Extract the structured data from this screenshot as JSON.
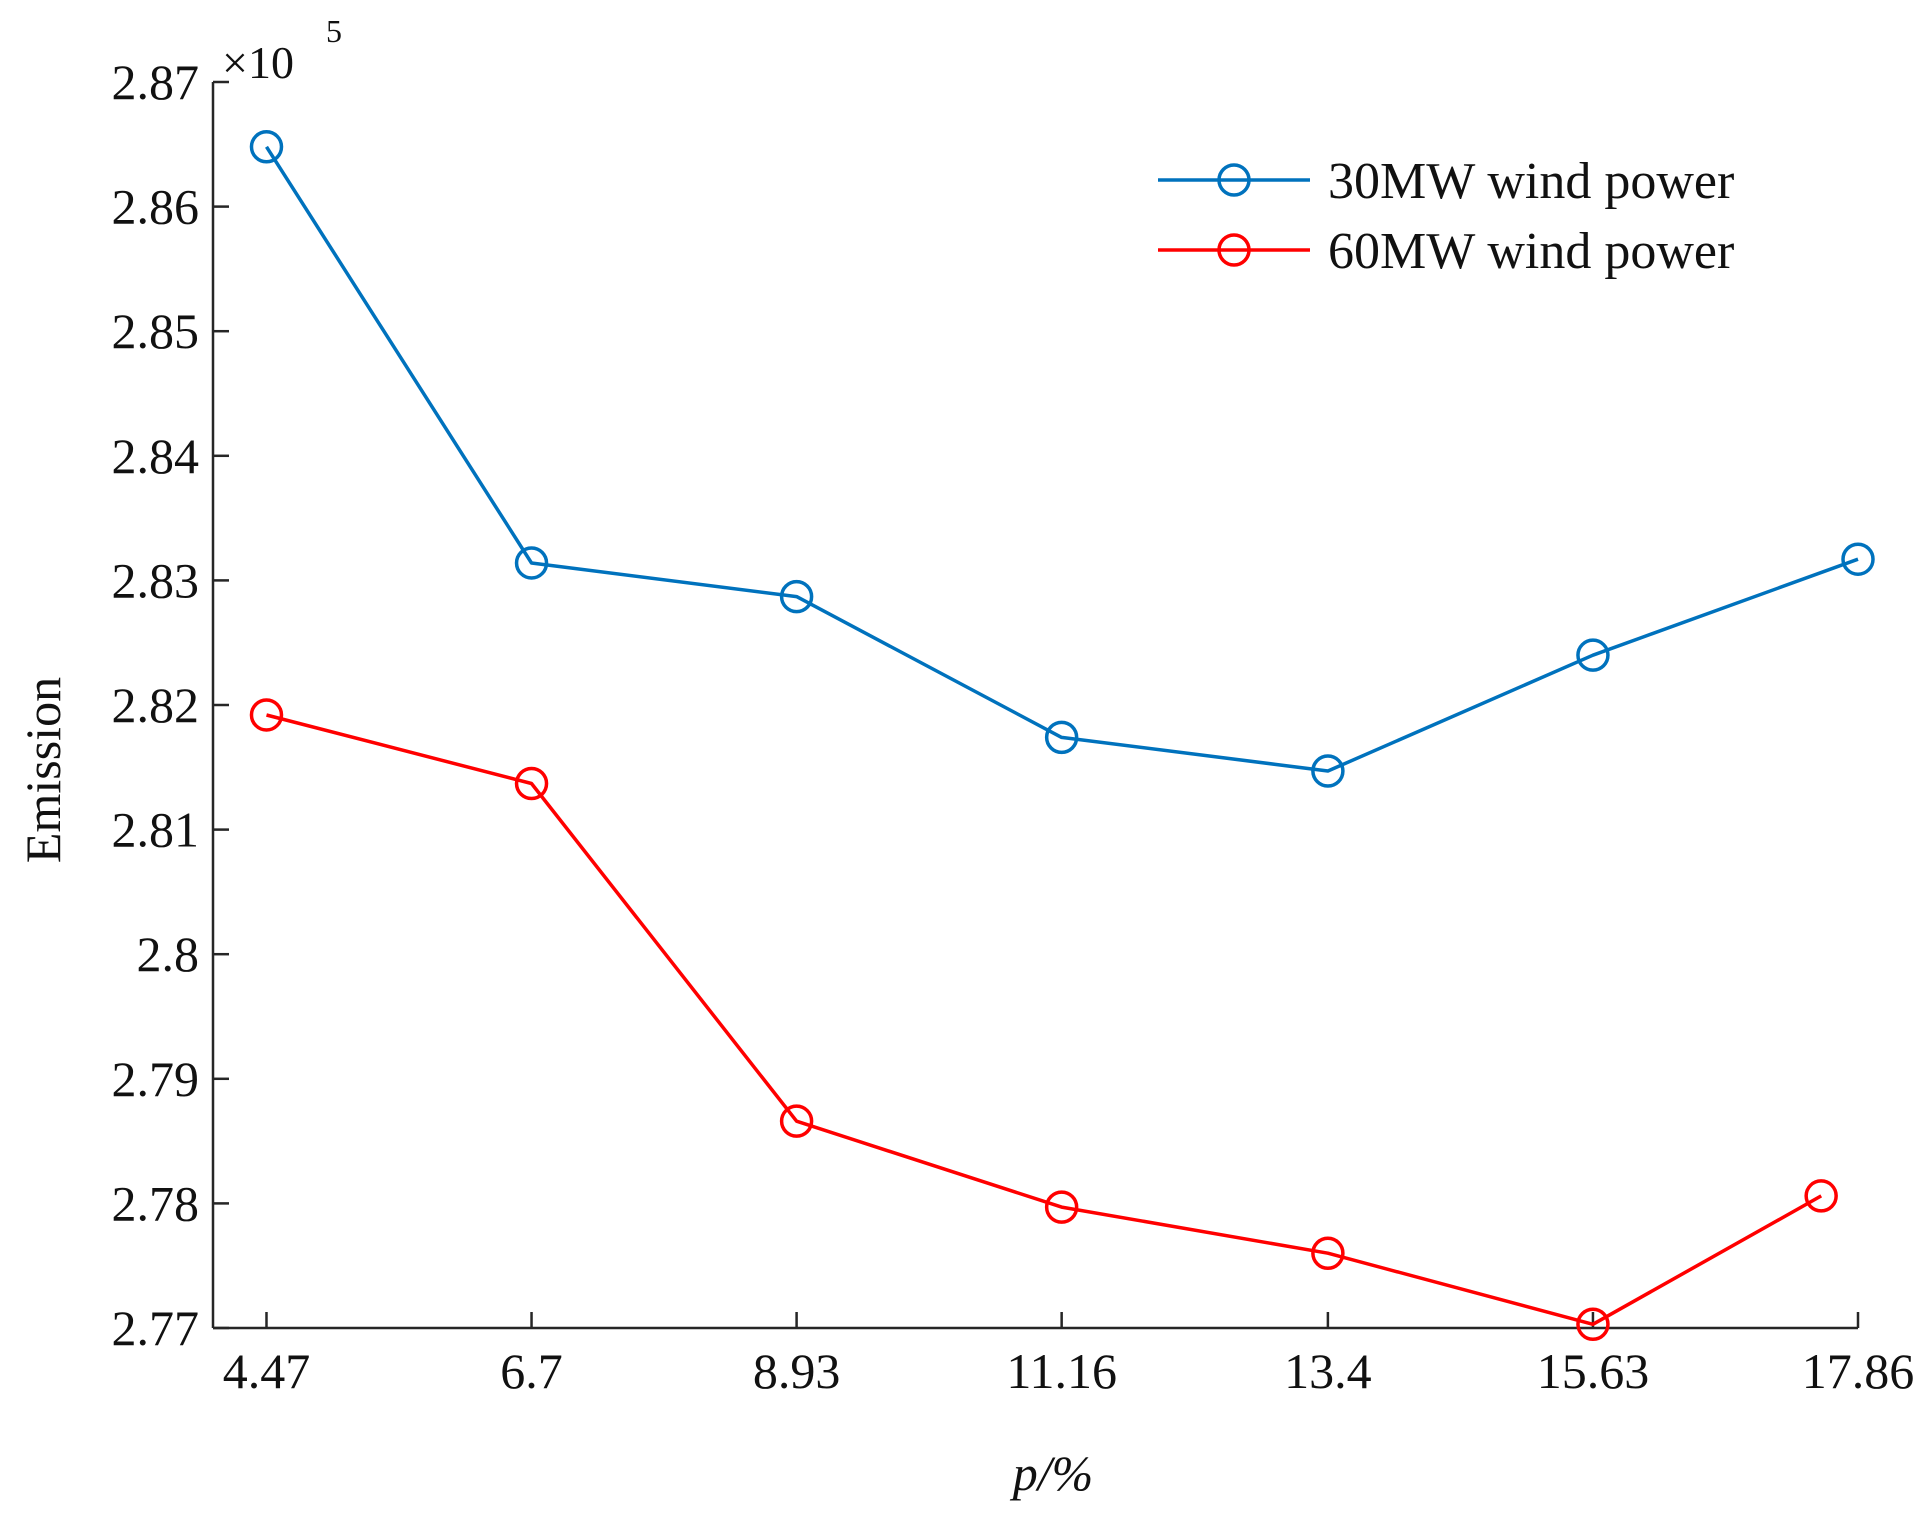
{
  "chart_data": {
    "type": "line",
    "title": "",
    "xlabel": "p/%",
    "ylabel": "Emission",
    "exponent_multiplier": "×10",
    "exponent_power": "5",
    "categories": [
      "4.47",
      "6.7",
      "8.93",
      "11.16",
      "13.4",
      "15.63",
      "17.86"
    ],
    "xlim": [
      4.02,
      17.86
    ],
    "ylim": [
      2.77,
      2.87
    ],
    "yticks": [
      "2.77",
      "2.78",
      "2.79",
      "2.8",
      "2.81",
      "2.82",
      "2.83",
      "2.84",
      "2.85",
      "2.86",
      "2.87"
    ],
    "grid": false,
    "legend_position": "top-right",
    "series": [
      {
        "name": "30MW wind power",
        "color": "#0072BD",
        "marker": "circle",
        "x": [
          4.47,
          6.7,
          8.93,
          11.16,
          13.4,
          15.63,
          17.86
        ],
        "values": [
          2.8648,
          2.8314,
          2.8287,
          2.8174,
          2.8147,
          2.824,
          2.8317
        ]
      },
      {
        "name": "60MW wind power",
        "color": "#FF0000",
        "marker": "circle",
        "x": [
          4.47,
          6.7,
          8.93,
          11.16,
          13.4,
          15.63,
          17.55
        ],
        "values": [
          2.8192,
          2.8137,
          2.7866,
          2.7797,
          2.776,
          2.7703,
          2.7806
        ]
      }
    ]
  }
}
